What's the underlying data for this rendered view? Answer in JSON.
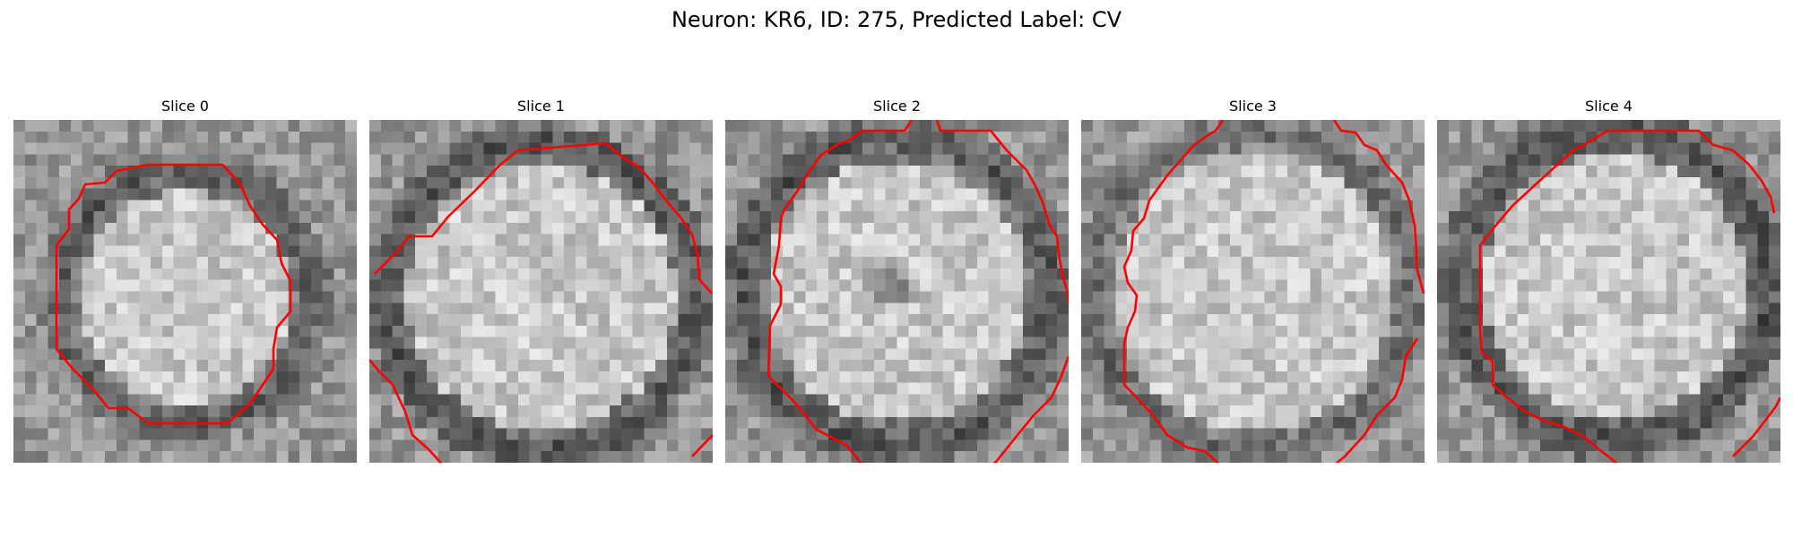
{
  "figure": {
    "title": "Neuron: KR6, ID: 275, Predicted Label: CV",
    "contour_color": "#ff0000",
    "colormap": "gray",
    "slices": [
      {
        "title": "Slice 0"
      },
      {
        "title": "Slice 1"
      },
      {
        "title": "Slice 2"
      },
      {
        "title": "Slice 3"
      },
      {
        "title": "Slice 4"
      }
    ]
  }
}
